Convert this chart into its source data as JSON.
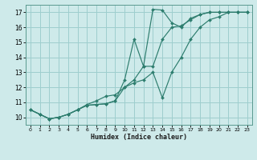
{
  "xlabel": "Humidex (Indice chaleur)",
  "background_color": "#ceeaea",
  "grid_color": "#9ecece",
  "line_color": "#2d7d6e",
  "xlim": [
    -0.5,
    23.5
  ],
  "ylim": [
    9.5,
    17.5
  ],
  "xticks": [
    0,
    1,
    2,
    3,
    4,
    5,
    6,
    7,
    8,
    9,
    10,
    11,
    12,
    13,
    14,
    15,
    16,
    17,
    18,
    19,
    20,
    21,
    22,
    23
  ],
  "yticks": [
    10,
    11,
    12,
    13,
    14,
    15,
    16,
    17
  ],
  "line1_x": [
    0,
    1,
    2,
    3,
    4,
    5,
    6,
    7,
    8,
    9,
    10,
    11,
    12,
    13,
    14,
    15,
    16,
    17,
    18,
    19,
    20,
    21,
    22,
    23
  ],
  "line1_y": [
    10.5,
    10.2,
    9.9,
    10.0,
    10.2,
    10.5,
    10.8,
    10.85,
    10.9,
    11.1,
    12.5,
    15.2,
    13.4,
    17.2,
    17.15,
    16.3,
    16.0,
    16.6,
    16.85,
    17.0,
    17.0,
    17.0,
    17.0,
    17.0
  ],
  "line2_x": [
    0,
    1,
    2,
    3,
    4,
    5,
    6,
    7,
    8,
    9,
    10,
    11,
    12,
    13,
    14,
    15,
    16,
    17,
    18,
    19,
    20,
    21,
    22,
    23
  ],
  "line2_y": [
    10.5,
    10.2,
    9.9,
    10.0,
    10.2,
    10.5,
    10.8,
    10.85,
    10.9,
    11.1,
    12.0,
    12.5,
    13.4,
    13.4,
    15.2,
    16.0,
    16.1,
    16.5,
    16.85,
    17.0,
    17.0,
    17.0,
    17.0,
    17.0
  ],
  "line3_x": [
    0,
    1,
    2,
    3,
    4,
    5,
    6,
    7,
    8,
    9,
    10,
    11,
    12,
    13,
    14,
    15,
    16,
    17,
    18,
    19,
    20,
    21,
    22,
    23
  ],
  "line3_y": [
    10.5,
    10.2,
    9.9,
    10.0,
    10.2,
    10.5,
    10.85,
    11.1,
    11.4,
    11.5,
    12.0,
    12.3,
    12.5,
    13.0,
    11.3,
    13.0,
    14.0,
    15.2,
    16.0,
    16.5,
    16.7,
    17.0,
    17.0,
    17.0
  ]
}
